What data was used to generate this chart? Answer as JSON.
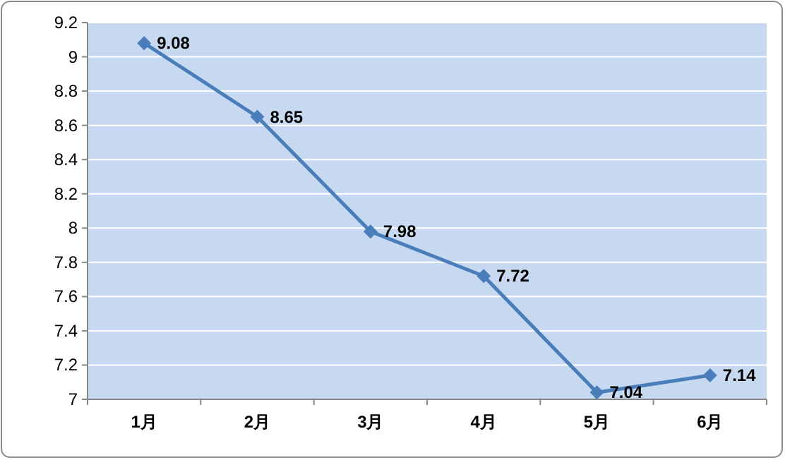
{
  "chart_data": {
    "type": "line",
    "categories": [
      "1月",
      "2月",
      "3月",
      "4月",
      "5月",
      "6月"
    ],
    "series": [
      {
        "color": "#4a7ebb",
        "values": [
          9.08,
          8.65,
          7.98,
          7.72,
          7.04,
          7.14
        ]
      }
    ],
    "ylim": [
      7,
      9.2
    ],
    "yticks": [
      7,
      7.2,
      7.4,
      7.6,
      7.8,
      8,
      8.2,
      8.4,
      8.6,
      8.8,
      9,
      9.2
    ],
    "grid": "y",
    "marker": "diamond",
    "line_style": "solid",
    "data_labels": true
  }
}
